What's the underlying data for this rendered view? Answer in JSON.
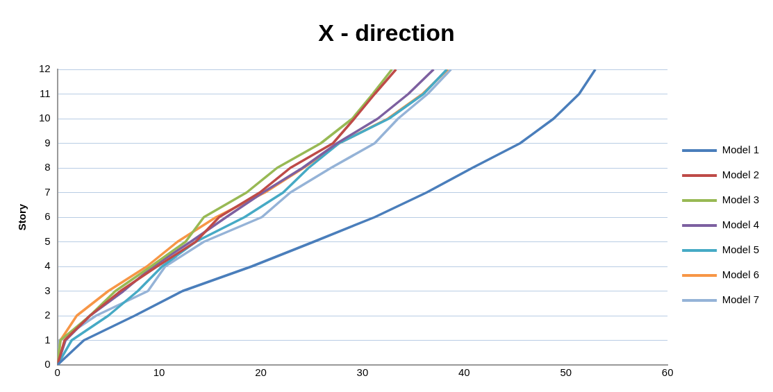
{
  "chart_data": {
    "type": "line",
    "title": "X - direction",
    "ylabel": "Story",
    "series": [
      {
        "name": "Model 1",
        "color": "#4a7ebb",
        "x": [
          0,
          2.6,
          7.6,
          12.3,
          19.1,
          25.2,
          31.2,
          36.3,
          40.8,
          45.5,
          48.8,
          51.3,
          52.9
        ],
        "values": [
          0,
          1,
          2,
          3,
          4,
          5,
          6,
          7,
          8,
          9,
          10,
          11,
          12
        ]
      },
      {
        "name": "Model 2",
        "color": "#be4b48",
        "x": [
          0,
          0.7,
          3.2,
          6.2,
          9.8,
          13.6,
          15.9,
          19.9,
          22.9,
          27.1,
          29.2,
          31.2,
          33.3
        ],
        "values": [
          0,
          1,
          2,
          3,
          4,
          5,
          6,
          7,
          8,
          9,
          10,
          11,
          12
        ]
      },
      {
        "name": "Model 3",
        "color": "#98b954",
        "x": [
          0,
          0.3,
          3.2,
          5.7,
          9.2,
          12.6,
          14.4,
          18.6,
          21.6,
          25.9,
          29.0,
          31.0,
          32.9
        ],
        "values": [
          0,
          1,
          2,
          3,
          4,
          5,
          6,
          7,
          8,
          9,
          10,
          11,
          12
        ]
      },
      {
        "name": "Model 4",
        "color": "#7d60a0",
        "x": [
          0,
          0.8,
          3.2,
          6.5,
          9.4,
          13.1,
          16.6,
          20.2,
          24.1,
          27.5,
          31.5,
          34.5,
          37.0
        ],
        "values": [
          0,
          1,
          2,
          3,
          4,
          5,
          6,
          7,
          8,
          9,
          10,
          11,
          12
        ]
      },
      {
        "name": "Model 5",
        "color": "#46aac5",
        "x": [
          0,
          1.4,
          5.0,
          7.9,
          10.3,
          13.6,
          18.4,
          22.2,
          24.7,
          27.7,
          32.6,
          36.0,
          38.3
        ],
        "values": [
          0,
          1,
          2,
          3,
          4,
          5,
          6,
          7,
          8,
          9,
          10,
          11,
          12
        ]
      },
      {
        "name": "Model 6",
        "color": "#f79646",
        "x": [
          0,
          0.3,
          1.9,
          5.0,
          8.8,
          11.8,
          15.6,
          20.4,
          24.2,
          27.7,
          32.5,
          35.9,
          38.4
        ],
        "values": [
          0,
          1,
          2,
          3,
          4,
          5,
          6,
          7,
          8,
          9,
          10,
          11,
          12
        ]
      },
      {
        "name": "Model 7",
        "color": "#95b3d7",
        "x": [
          0,
          0.2,
          3.8,
          8.9,
          10.6,
          14.4,
          20.1,
          22.9,
          26.9,
          31.2,
          33.5,
          36.4,
          38.7
        ],
        "values": [
          0,
          1,
          2,
          3,
          4,
          5,
          6,
          7,
          8,
          9,
          10,
          11,
          12
        ]
      }
    ],
    "xlim": [
      0,
      60
    ],
    "xticks": [
      0,
      10,
      20,
      30,
      40,
      50,
      60
    ],
    "ylim": [
      0,
      12
    ],
    "yticks": [
      0,
      1,
      2,
      3,
      4,
      5,
      6,
      7,
      8,
      9,
      10,
      11,
      12
    ],
    "grid": "y",
    "legend": "right",
    "marker": "none",
    "line_style": "solid"
  }
}
